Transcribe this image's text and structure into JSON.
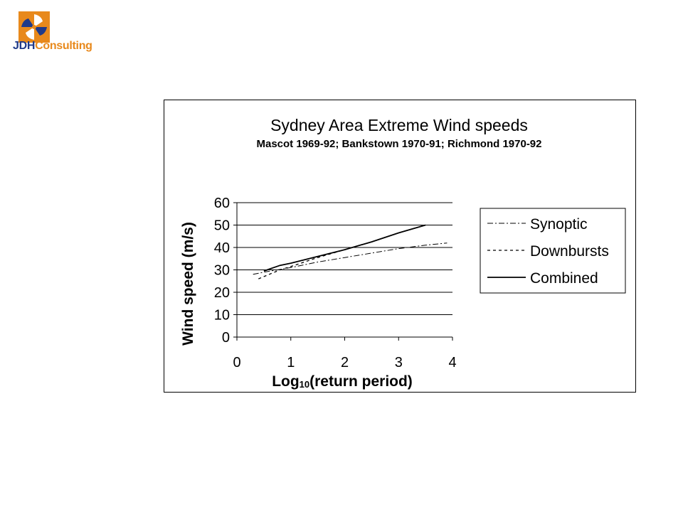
{
  "logo": {
    "brand_part1": "JDH",
    "brand_part2": "Consulting",
    "colors": {
      "primary": "#1f3a8a",
      "accent": "#e8891c"
    },
    "icon": "jdh-windmill-logo-icon"
  },
  "chart_data": {
    "type": "line",
    "title": "Sydney Area Extreme Wind speeds",
    "subtitle": "Mascot 1969-92; Bankstown 1970-91; Richmond 1970-92",
    "xlabel_main": "Log",
    "xlabel_sub": "10",
    "xlabel_rest": "(return period)",
    "ylabel": "Wind speed (m/s)",
    "xlim": [
      0,
      4
    ],
    "ylim": [
      0,
      60
    ],
    "x_ticks": [
      0,
      1,
      2,
      3,
      4
    ],
    "y_ticks": [
      0,
      10,
      20,
      30,
      40,
      50,
      60
    ],
    "x_tick_labels": [
      "0",
      "1",
      "2",
      "3",
      "4"
    ],
    "y_tick_labels": [
      "0",
      "10",
      "20",
      "30",
      "40",
      "50",
      "60"
    ],
    "grid": "horizontal",
    "legend_position": "right",
    "series": [
      {
        "name": "Synoptic",
        "style": "dash-dot",
        "x": [
          0.3,
          0.5,
          1.0,
          1.5,
          2.0,
          2.5,
          3.0,
          3.5,
          3.9
        ],
        "y": [
          28,
          29,
          31,
          33.5,
          35.5,
          37.5,
          39.5,
          41,
          42
        ]
      },
      {
        "name": "Downbursts",
        "style": "dashed",
        "x": [
          0.4,
          0.6,
          0.8,
          1.0,
          1.5,
          2.0,
          2.5,
          3.0,
          3.5
        ],
        "y": [
          26,
          28,
          30,
          31.5,
          35.5,
          39,
          42.5,
          46.5,
          50
        ]
      },
      {
        "name": "Combined",
        "style": "solid",
        "x": [
          0.5,
          0.8,
          1.0,
          1.5,
          2.0,
          2.5,
          3.0,
          3.5
        ],
        "y": [
          29.5,
          32,
          33,
          36,
          39,
          42.5,
          46.5,
          50
        ]
      }
    ]
  }
}
